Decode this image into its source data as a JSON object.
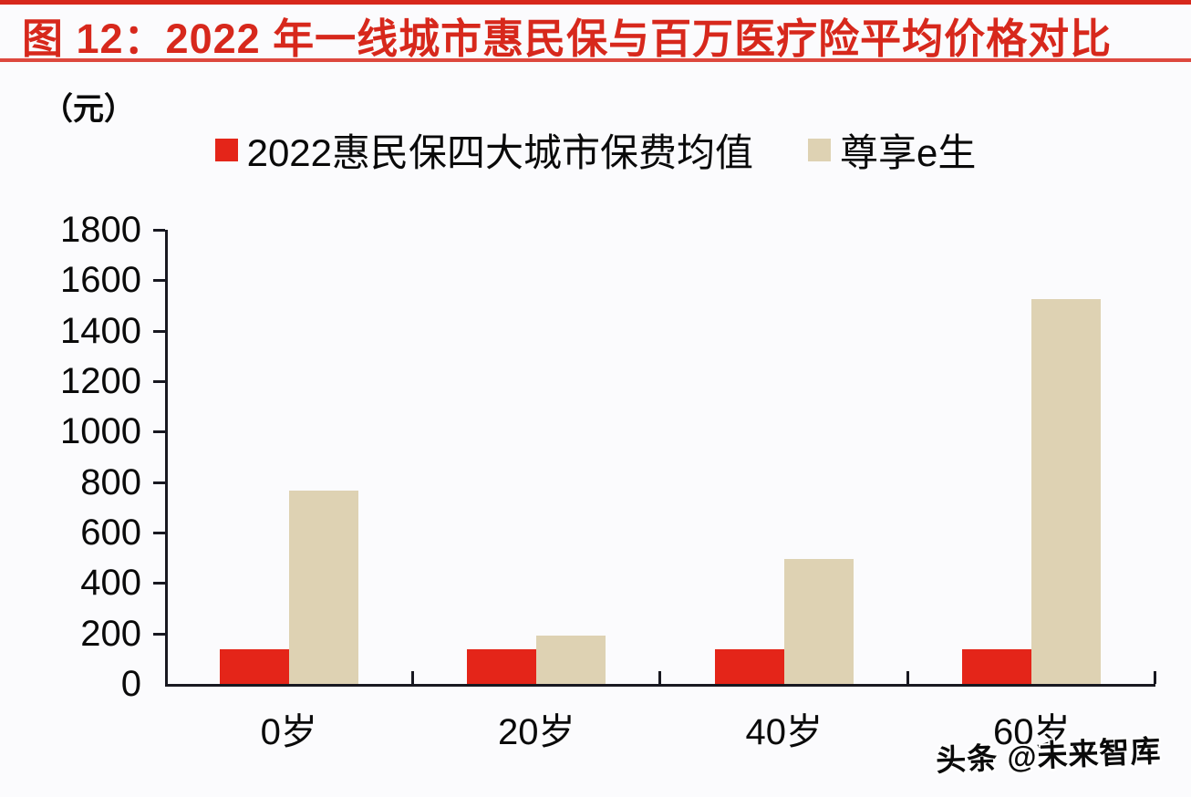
{
  "header": {
    "title": "图 12：2022 年一线城市惠民保与百万医疗险平均价格对比"
  },
  "watermark": "头条 @未来智库",
  "colors": {
    "accent_red": "#d7281c",
    "bar_red": "#e42519",
    "bar_tan": "#ded2b3",
    "axis": "#181820",
    "text": "#0a0a0a",
    "background": "#fbfbfd"
  },
  "chart_data": {
    "type": "bar",
    "title": "图 12：2022 年一线城市惠民保与百万医疗险平均价格对比",
    "unit_label": "（元）",
    "categories": [
      "0岁",
      "20岁",
      "40岁",
      "60岁"
    ],
    "series": [
      {
        "name": "2022惠民保四大城市保费均值",
        "color": "#e42519",
        "values": [
          139,
          139,
          139,
          139
        ]
      },
      {
        "name": "尊享e生",
        "color": "#ded2b3",
        "values": [
          766,
          192,
          496,
          1526
        ]
      }
    ],
    "xlabel": "",
    "ylabel": "（元）",
    "ylim": [
      0,
      1800
    ],
    "ytick_step": 200,
    "ytick_labels": [
      "0",
      "200",
      "400",
      "600",
      "800",
      "1000",
      "1200",
      "1400",
      "1600",
      "1800"
    ],
    "grid": false,
    "legend_position": "top"
  }
}
